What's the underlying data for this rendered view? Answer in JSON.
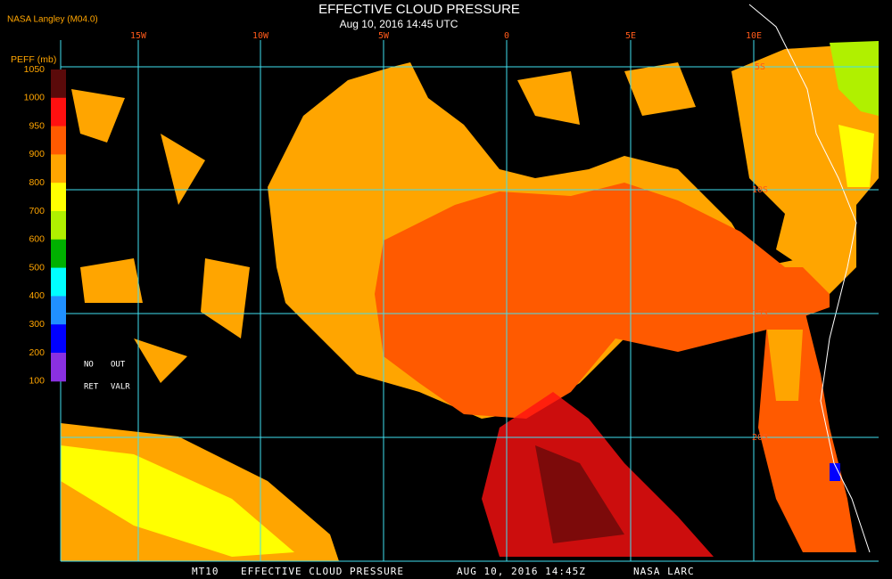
{
  "header": {
    "logo": "NASA Langley (M04.0)",
    "title": "EFFECTIVE CLOUD PRESSURE",
    "subtitle": "Aug 10, 2016 14:45 UTC"
  },
  "colorbar": {
    "label": "PEFF (mb)",
    "ticks": [
      1050,
      1000,
      950,
      900,
      800,
      700,
      600,
      500,
      400,
      300,
      200,
      100
    ],
    "colors": [
      "#5a0a0a",
      "#ff1010",
      "#ff5a00",
      "#ffa500",
      "#ffff00",
      "#b0f000",
      "#00b000",
      "#00ffff",
      "#2090ff",
      "#0000ff",
      "#8a30e0"
    ],
    "notes": [
      "NO",
      "OUT",
      "RET",
      "VALR"
    ]
  },
  "map": {
    "longitudes": [
      "15W",
      "10W",
      "5W",
      "0",
      "5E",
      "10E"
    ],
    "latitudes": [
      "5S",
      "10S",
      "15S",
      "20S"
    ]
  },
  "footer": {
    "product": "MT10",
    "title": "EFFECTIVE CLOUD PRESSURE",
    "time": "AUG 10, 2016 14:45Z",
    "source": "NASA LARC"
  }
}
